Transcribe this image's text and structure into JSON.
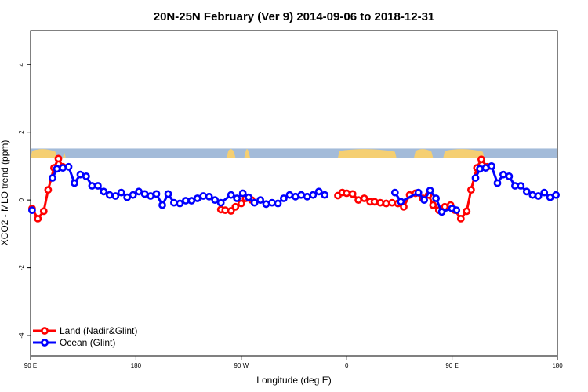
{
  "chart_data": {
    "type": "line",
    "title": "20N-25N February (Ver 9)   2014-09-06 to 2018-12-31",
    "xlabel": "Longitude (deg E)",
    "ylabel": "XCO2 - MLO trend (ppm)",
    "xlim": [
      90,
      450
    ],
    "ylim": [
      -4.6,
      5
    ],
    "x_ticks": [
      {
        "value": 90,
        "label": "90 E"
      },
      {
        "value": 162,
        "label": "180"
      },
      {
        "value": 234,
        "label": "90 W"
      },
      {
        "value": 306,
        "label": "0"
      },
      {
        "value": 378,
        "label": "90 E"
      },
      {
        "value": 450,
        "label": "180"
      }
    ],
    "y_ticks": [
      -4,
      -2,
      0,
      2,
      4
    ],
    "grid": false,
    "legend_position": "bottom-left",
    "map_strip": {
      "ymin": 1.25,
      "ymax": 1.52,
      "ocean_color": "#a3bbd9",
      "land_color": "#f5cf72"
    },
    "series": [
      {
        "name": "Land (Nadir&Glint)",
        "color": "#ff0000",
        "points": [
          [
            91,
            -0.25
          ],
          [
            95,
            -0.55
          ],
          [
            99,
            -0.33
          ],
          [
            102,
            0.3
          ],
          [
            106,
            0.95
          ],
          [
            109,
            1.22
          ],
          [
            112,
            0.98
          ],
          [
            220,
            -0.28
          ],
          [
            223,
            -0.3
          ],
          [
            227,
            -0.32
          ],
          [
            230,
            -0.2
          ],
          [
            234,
            -0.1
          ],
          [
            237,
            0.05
          ],
          [
            241,
            0.0
          ],
          [
            300,
            0.13
          ],
          [
            303,
            0.22
          ],
          [
            306,
            0.2
          ],
          [
            310,
            0.18
          ],
          [
            314,
            0.0
          ],
          [
            318,
            0.05
          ],
          [
            322,
            -0.05
          ],
          [
            325,
            -0.05
          ],
          [
            329,
            -0.08
          ],
          [
            333,
            -0.1
          ],
          [
            337,
            -0.08
          ],
          [
            341,
            -0.1
          ],
          [
            345,
            -0.2
          ],
          [
            349,
            0.15
          ],
          [
            353,
            0.2
          ],
          [
            358,
            0.05
          ],
          [
            362,
            0.15
          ],
          [
            365,
            -0.15
          ],
          [
            369,
            -0.3
          ],
          [
            373,
            -0.2
          ],
          [
            377,
            -0.15
          ],
          [
            380,
            -0.3
          ],
          [
            384,
            -0.55
          ],
          [
            388,
            -0.33
          ],
          [
            391,
            0.3
          ],
          [
            395,
            0.95
          ],
          [
            398,
            1.2
          ],
          [
            402,
            0.98
          ]
        ]
      },
      {
        "name": "Ocean (Glint)",
        "color": "#0000ff",
        "points": [
          [
            91,
            -0.3
          ],
          [
            105,
            0.65
          ],
          [
            108,
            0.92
          ],
          [
            112,
            0.95
          ],
          [
            116,
            0.98
          ],
          [
            120,
            0.5
          ],
          [
            124,
            0.75
          ],
          [
            128,
            0.7
          ],
          [
            132,
            0.42
          ],
          [
            136,
            0.42
          ],
          [
            140,
            0.25
          ],
          [
            144,
            0.15
          ],
          [
            148,
            0.12
          ],
          [
            152,
            0.22
          ],
          [
            156,
            0.08
          ],
          [
            160,
            0.15
          ],
          [
            164,
            0.25
          ],
          [
            168,
            0.18
          ],
          [
            172,
            0.12
          ],
          [
            176,
            0.18
          ],
          [
            180,
            -0.15
          ],
          [
            184,
            0.18
          ],
          [
            188,
            -0.08
          ],
          [
            192,
            -0.1
          ],
          [
            196,
            -0.02
          ],
          [
            200,
            -0.02
          ],
          [
            204,
            0.05
          ],
          [
            208,
            0.12
          ],
          [
            212,
            0.1
          ],
          [
            216,
            0.0
          ],
          [
            220,
            -0.08
          ],
          [
            227,
            0.15
          ],
          [
            231,
            0.05
          ],
          [
            235,
            0.2
          ],
          [
            239,
            0.08
          ],
          [
            243,
            -0.08
          ],
          [
            247,
            0.0
          ],
          [
            251,
            -0.12
          ],
          [
            255,
            -0.08
          ],
          [
            259,
            -0.1
          ],
          [
            263,
            0.05
          ],
          [
            267,
            0.15
          ],
          [
            271,
            0.1
          ],
          [
            275,
            0.15
          ],
          [
            279,
            0.1
          ],
          [
            283,
            0.15
          ],
          [
            287,
            0.25
          ],
          [
            291,
            0.15
          ],
          [
            339,
            0.22
          ],
          [
            343,
            -0.05
          ],
          [
            355,
            0.22
          ],
          [
            359,
            0.0
          ],
          [
            363,
            0.28
          ],
          [
            367,
            0.05
          ],
          [
            371,
            -0.35
          ],
          [
            378,
            -0.25
          ],
          [
            381,
            -0.3
          ],
          [
            394,
            0.65
          ],
          [
            397,
            0.92
          ],
          [
            401,
            0.95
          ],
          [
            405,
            1.0
          ],
          [
            409,
            0.5
          ],
          [
            413,
            0.75
          ],
          [
            417,
            0.7
          ],
          [
            421,
            0.42
          ],
          [
            425,
            0.42
          ],
          [
            429,
            0.25
          ],
          [
            433,
            0.15
          ],
          [
            437,
            0.12
          ],
          [
            441,
            0.22
          ],
          [
            445,
            0.08
          ],
          [
            449,
            0.15
          ]
        ]
      }
    ]
  }
}
